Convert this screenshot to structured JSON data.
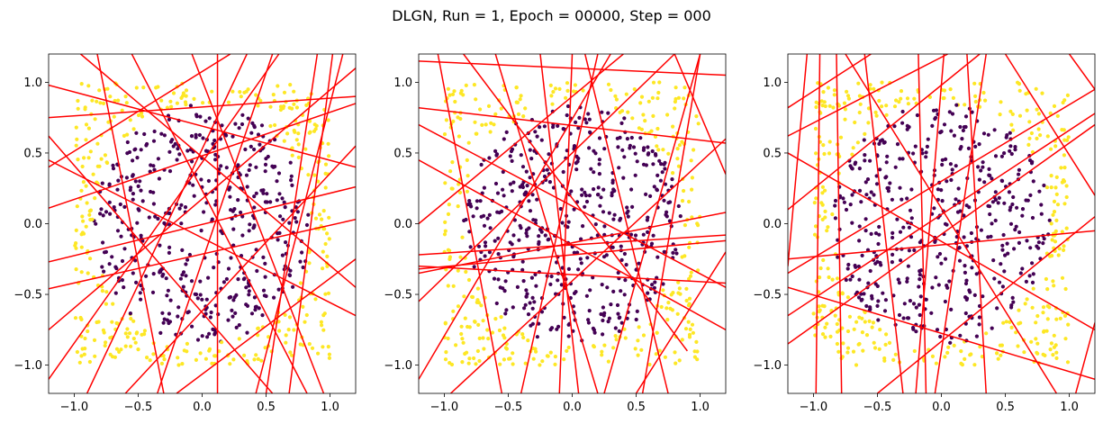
{
  "title": "DLGN, Run = 1, Epoch = 00000, Step = 000",
  "colors": {
    "inner": "#440154",
    "outer": "#fde725",
    "lines": "#ff0000"
  },
  "chart_data": [
    {
      "type": "scatter",
      "xlim": [
        -1.2,
        1.2
      ],
      "ylim": [
        -1.2,
        1.2
      ],
      "xticks": [
        -1.0,
        -0.5,
        0.0,
        0.5,
        1.0
      ],
      "yticks": [
        -1.0,
        -0.5,
        0.0,
        0.5,
        1.0
      ],
      "xtick_labels": [
        "−1.0",
        "−0.5",
        "0.0",
        "0.5",
        "1.0"
      ],
      "ytick_labels": [
        "−1.0",
        "−0.5",
        "0.0",
        "0.5",
        "1.0"
      ],
      "point_classes": {
        "inner": "radius < 0.85 (purple)",
        "outer": "radius >= 0.85 (yellow)"
      },
      "n_points": 800,
      "lines": [
        [
          [
            -1.2,
            0.75
          ],
          [
            1.2,
            0.9
          ]
        ],
        [
          [
            -1.2,
            0.11
          ],
          [
            1.2,
            0.85
          ]
        ],
        [
          [
            -1.2,
            -0.27
          ],
          [
            1.2,
            0.26
          ]
        ],
        [
          [
            -1.2,
            -0.46
          ],
          [
            1.2,
            0.03
          ]
        ],
        [
          [
            -1.2,
            0.45
          ],
          [
            1.2,
            -0.65
          ]
        ],
        [
          [
            -1.2,
            0.62
          ],
          [
            0.55,
            -1.2
          ]
        ],
        [
          [
            -0.95,
            1.2
          ],
          [
            1.2,
            -0.45
          ]
        ],
        [
          [
            -0.9,
            -1.2
          ],
          [
            0.35,
            1.2
          ]
        ],
        [
          [
            -0.82,
            1.2
          ],
          [
            -0.3,
            -1.2
          ]
        ],
        [
          [
            -0.55,
            1.2
          ],
          [
            0.82,
            -1.2
          ]
        ],
        [
          [
            -0.35,
            -1.2
          ],
          [
            0.55,
            1.2
          ]
        ],
        [
          [
            -0.08,
            1.2
          ],
          [
            0.95,
            -1.2
          ]
        ],
        [
          [
            0.12,
            -1.2
          ],
          [
            0.12,
            1.2
          ]
        ],
        [
          [
            0.42,
            -1.2
          ],
          [
            1.1,
            1.2
          ]
        ],
        [
          [
            0.9,
            1.2
          ],
          [
            0.5,
            -1.2
          ]
        ],
        [
          [
            -1.2,
            0.4
          ],
          [
            0.22,
            1.2
          ]
        ],
        [
          [
            -0.6,
            -1.2
          ],
          [
            1.2,
            0.55
          ]
        ],
        [
          [
            -1.2,
            -0.75
          ],
          [
            1.2,
            1.1
          ]
        ],
        [
          [
            -1.2,
            -1.1
          ],
          [
            0.6,
            1.2
          ]
        ],
        [
          [
            -0.2,
            -1.2
          ],
          [
            1.2,
            -0.25
          ]
        ],
        [
          [
            1.02,
            1.2
          ],
          [
            0.68,
            -1.2
          ]
        ],
        [
          [
            -1.2,
            0.98
          ],
          [
            1.2,
            0.4
          ]
        ]
      ]
    },
    {
      "type": "scatter",
      "xlim": [
        -1.2,
        1.2
      ],
      "ylim": [
        -1.2,
        1.2
      ],
      "xticks": [
        -1.0,
        -0.5,
        0.0,
        0.5,
        1.0
      ],
      "yticks": [
        -1.0,
        -0.5,
        0.0,
        0.5,
        1.0
      ],
      "xtick_labels": [
        "−1.0",
        "−0.5",
        "0.0",
        "0.5",
        "1.0"
      ],
      "ytick_labels": [
        "−1.0",
        "−0.5",
        "0.0",
        "0.5",
        "1.0"
      ],
      "n_points": 800,
      "lines": [
        [
          [
            -1.2,
            0.82
          ],
          [
            1.2,
            0.57
          ]
        ],
        [
          [
            -1.2,
            0.7
          ],
          [
            1.2,
            -0.45
          ]
        ],
        [
          [
            -1.2,
            -0.35
          ],
          [
            1.2,
            0.08
          ]
        ],
        [
          [
            -1.2,
            -0.32
          ],
          [
            1.2,
            -0.12
          ]
        ],
        [
          [
            -1.2,
            -0.3
          ],
          [
            1.2,
            -0.42
          ]
        ],
        [
          [
            -1.2,
            -0.22
          ],
          [
            1.2,
            -0.08
          ]
        ],
        [
          [
            -1.2,
            0.0
          ],
          [
            0.4,
            1.2
          ]
        ],
        [
          [
            -1.2,
            -0.55
          ],
          [
            0.8,
            1.2
          ]
        ],
        [
          [
            -1.2,
            -1.1
          ],
          [
            0.3,
            1.2
          ]
        ],
        [
          [
            -1.05,
            1.2
          ],
          [
            -0.55,
            -1.2
          ]
        ],
        [
          [
            -0.95,
            -1.2
          ],
          [
            1.2,
            0.6
          ]
        ],
        [
          [
            -0.85,
            1.2
          ],
          [
            0.9,
            -0.9
          ]
        ],
        [
          [
            -0.6,
            1.2
          ],
          [
            0.2,
            -1.2
          ]
        ],
        [
          [
            -0.25,
            1.2
          ],
          [
            0.05,
            -1.2
          ]
        ],
        [
          [
            -0.1,
            -1.2
          ],
          [
            0.0,
            1.2
          ]
        ],
        [
          [
            0.1,
            1.2
          ],
          [
            0.75,
            -1.2
          ]
        ],
        [
          [
            0.25,
            -1.2
          ],
          [
            1.0,
            1.2
          ]
        ],
        [
          [
            0.8,
            1.2
          ],
          [
            1.2,
            0.35
          ]
        ],
        [
          [
            0.5,
            -1.2
          ],
          [
            1.2,
            -0.2
          ]
        ],
        [
          [
            -1.2,
            0.45
          ],
          [
            1.2,
            -0.75
          ]
        ],
        [
          [
            1.0,
            1.2
          ],
          [
            0.55,
            -1.2
          ]
        ],
        [
          [
            -0.4,
            -1.2
          ],
          [
            0.2,
            1.2
          ]
        ],
        [
          [
            -1.2,
            1.15
          ],
          [
            1.2,
            1.05
          ]
        ]
      ]
    },
    {
      "type": "scatter",
      "xlim": [
        -1.2,
        1.2
      ],
      "ylim": [
        -1.2,
        1.2
      ],
      "xticks": [
        -1.0,
        -0.5,
        0.0,
        0.5,
        1.0
      ],
      "yticks": [
        -1.0,
        -0.5,
        0.0,
        0.5,
        1.0
      ],
      "xtick_labels": [
        "−1.0",
        "−0.5",
        "0.0",
        "0.5",
        "1.0"
      ],
      "ytick_labels": [
        "−1.0",
        "−0.5",
        "0.0",
        "0.5",
        "1.0"
      ],
      "n_points": 800,
      "lines": [
        [
          [
            -1.2,
            0.62
          ],
          [
            0.05,
            1.2
          ]
        ],
        [
          [
            -1.2,
            0.82
          ],
          [
            -0.55,
            1.2
          ]
        ],
        [
          [
            -1.2,
            -0.35
          ],
          [
            1.2,
            0.95
          ]
        ],
        [
          [
            -1.2,
            -0.25
          ],
          [
            1.2,
            -0.05
          ]
        ],
        [
          [
            -1.2,
            0.1
          ],
          [
            0.3,
            1.2
          ]
        ],
        [
          [
            -1.2,
            -0.85
          ],
          [
            1.2,
            0.7
          ]
        ],
        [
          [
            -1.2,
            -0.45
          ],
          [
            1.2,
            -1.1
          ]
        ],
        [
          [
            -1.05,
            1.2
          ],
          [
            -1.2,
            -0.3
          ]
        ],
        [
          [
            -0.98,
            -1.2
          ],
          [
            -0.95,
            1.2
          ]
        ],
        [
          [
            -0.82,
            1.2
          ],
          [
            -0.78,
            -1.2
          ]
        ],
        [
          [
            -0.6,
            1.2
          ],
          [
            -0.3,
            -1.2
          ]
        ],
        [
          [
            -0.75,
            1.2
          ],
          [
            0.9,
            -1.2
          ]
        ],
        [
          [
            -0.18,
            1.2
          ],
          [
            -0.12,
            -1.2
          ]
        ],
        [
          [
            0.02,
            1.2
          ],
          [
            -0.2,
            -1.2
          ]
        ],
        [
          [
            0.2,
            1.2
          ],
          [
            0.35,
            -1.2
          ]
        ],
        [
          [
            0.35,
            1.2
          ],
          [
            -0.05,
            -1.2
          ]
        ],
        [
          [
            0.5,
            1.2
          ],
          [
            1.2,
            0.2
          ]
        ],
        [
          [
            1.0,
            1.2
          ],
          [
            1.2,
            0.95
          ]
        ],
        [
          [
            1.05,
            -1.2
          ],
          [
            1.2,
            -0.7
          ]
        ],
        [
          [
            -1.2,
            0.5
          ],
          [
            1.2,
            -0.75
          ]
        ],
        [
          [
            -0.5,
            -1.2
          ],
          [
            1.2,
            0.05
          ]
        ],
        [
          [
            -1.2,
            -0.65
          ],
          [
            1.2,
            0.78
          ]
        ]
      ]
    }
  ]
}
